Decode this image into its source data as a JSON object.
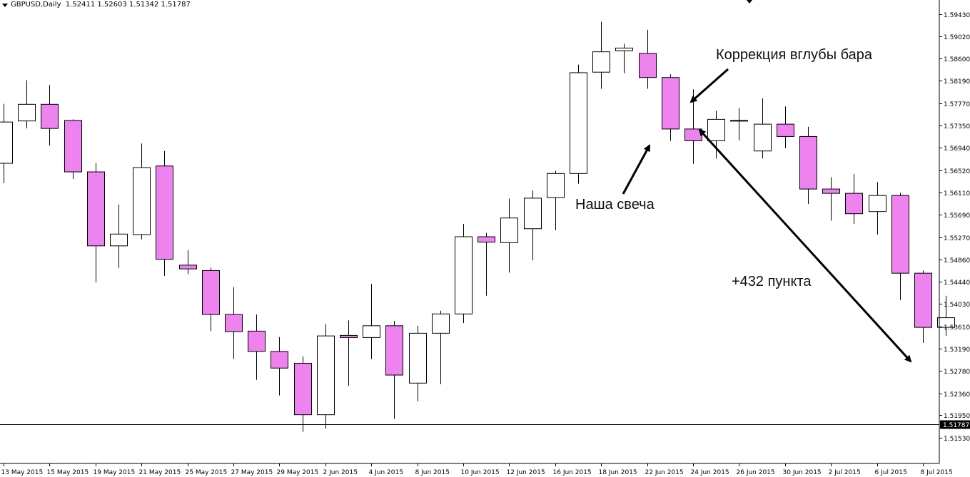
{
  "header": {
    "symbol": "GBPUSD,Daily",
    "ohlc": "1.52411 1.52603 1.51342 1.51787"
  },
  "annotations": {
    "correction": "Коррекция вглубы бара",
    "our_candle": "Наша свеча",
    "points": "+432 пункта"
  },
  "colors": {
    "bear_body": "#ee82ee",
    "bull_body": "#ffffff",
    "outline": "#000000",
    "current_price_tag": "#000000"
  },
  "chart_data": {
    "type": "candlestick",
    "y_ticks": [
      "1.59430",
      "1.59020",
      "1.58600",
      "1.58190",
      "1.57770",
      "1.57350",
      "1.56940",
      "1.56520",
      "1.56110",
      "1.55690",
      "1.55270",
      "1.54860",
      "1.54440",
      "1.54030",
      "1.53610",
      "1.53190",
      "1.52780",
      "1.52360",
      "1.51950",
      "1.51530"
    ],
    "ylim": [
      1.5148,
      1.5951
    ],
    "current_price": "1.51787",
    "x_tick_labels": [
      "13 May 2015",
      "15 May 2015",
      "19 May 2015",
      "21 May 2015",
      "25 May 2015",
      "27 May 2015",
      "29 May 2015",
      "2 Jun 2015",
      "4 Jun 2015",
      "8 Jun 2015",
      "10 Jun 2015",
      "12 Jun 2015",
      "16 Jun 2015",
      "18 Jun 2015",
      "22 Jun 2015",
      "24 Jun 2015",
      "26 Jun 2015",
      "30 Jun 2015",
      "2 Jul 2015",
      "6 Jul 2015",
      "8 Jul 2015"
    ],
    "candles": [
      {
        "o": 1.5665,
        "h": 1.5776,
        "l": 1.5628,
        "c": 1.5742
      },
      {
        "o": 1.5744,
        "h": 1.582,
        "l": 1.573,
        "c": 1.5775
      },
      {
        "o": 1.5775,
        "h": 1.5811,
        "l": 1.5698,
        "c": 1.573
      },
      {
        "o": 1.5745,
        "h": 1.5747,
        "l": 1.5636,
        "c": 1.5649
      },
      {
        "o": 1.5649,
        "h": 1.5665,
        "l": 1.5443,
        "c": 1.5511
      },
      {
        "o": 1.5511,
        "h": 1.5588,
        "l": 1.547,
        "c": 1.5533
      },
      {
        "o": 1.5532,
        "h": 1.5702,
        "l": 1.5523,
        "c": 1.5657
      },
      {
        "o": 1.566,
        "h": 1.5688,
        "l": 1.5455,
        "c": 1.5486
      },
      {
        "o": 1.5475,
        "h": 1.5503,
        "l": 1.5458,
        "c": 1.5468
      },
      {
        "o": 1.5465,
        "h": 1.547,
        "l": 1.5352,
        "c": 1.5383
      },
      {
        "o": 1.5383,
        "h": 1.5434,
        "l": 1.53,
        "c": 1.5351
      },
      {
        "o": 1.5352,
        "h": 1.5383,
        "l": 1.5261,
        "c": 1.5314
      },
      {
        "o": 1.5314,
        "h": 1.5341,
        "l": 1.5232,
        "c": 1.5283
      },
      {
        "o": 1.5292,
        "h": 1.5305,
        "l": 1.5164,
        "c": 1.5196
      },
      {
        "o": 1.5196,
        "h": 1.5365,
        "l": 1.517,
        "c": 1.5343
      },
      {
        "o": 1.5344,
        "h": 1.5372,
        "l": 1.525,
        "c": 1.534
      },
      {
        "o": 1.534,
        "h": 1.544,
        "l": 1.53,
        "c": 1.5362
      },
      {
        "o": 1.5362,
        "h": 1.5371,
        "l": 1.5188,
        "c": 1.527
      },
      {
        "o": 1.5255,
        "h": 1.5362,
        "l": 1.5221,
        "c": 1.5348
      },
      {
        "o": 1.5348,
        "h": 1.539,
        "l": 1.5253,
        "c": 1.5384
      },
      {
        "o": 1.5384,
        "h": 1.5552,
        "l": 1.5367,
        "c": 1.5528
      },
      {
        "o": 1.5528,
        "h": 1.5535,
        "l": 1.5418,
        "c": 1.5518
      },
      {
        "o": 1.5517,
        "h": 1.5599,
        "l": 1.5461,
        "c": 1.5563
      },
      {
        "o": 1.5543,
        "h": 1.5614,
        "l": 1.5484,
        "c": 1.56
      },
      {
        "o": 1.5601,
        "h": 1.5651,
        "l": 1.554,
        "c": 1.5646
      },
      {
        "o": 1.5646,
        "h": 1.5849,
        "l": 1.5627,
        "c": 1.5834
      },
      {
        "o": 1.5835,
        "h": 1.5929,
        "l": 1.5804,
        "c": 1.5873
      },
      {
        "o": 1.5875,
        "h": 1.5888,
        "l": 1.5833,
        "c": 1.588
      },
      {
        "o": 1.587,
        "h": 1.5914,
        "l": 1.5804,
        "c": 1.5825
      },
      {
        "o": 1.5825,
        "h": 1.5831,
        "l": 1.5707,
        "c": 1.5729
      },
      {
        "o": 1.5729,
        "h": 1.5803,
        "l": 1.5664,
        "c": 1.5707
      },
      {
        "o": 1.5707,
        "h": 1.5763,
        "l": 1.5674,
        "c": 1.5747
      },
      {
        "o": 1.5745,
        "h": 1.5768,
        "l": 1.5708,
        "c": 1.5745
      },
      {
        "o": 1.5688,
        "h": 1.5786,
        "l": 1.5674,
        "c": 1.5738
      },
      {
        "o": 1.5738,
        "h": 1.5771,
        "l": 1.5693,
        "c": 1.5715
      },
      {
        "o": 1.5715,
        "h": 1.5733,
        "l": 1.5589,
        "c": 1.5617
      },
      {
        "o": 1.5617,
        "h": 1.5639,
        "l": 1.5558,
        "c": 1.5609
      },
      {
        "o": 1.5609,
        "h": 1.5645,
        "l": 1.5552,
        "c": 1.5571
      },
      {
        "o": 1.5575,
        "h": 1.563,
        "l": 1.5532,
        "c": 1.5605
      },
      {
        "o": 1.5605,
        "h": 1.561,
        "l": 1.541,
        "c": 1.546
      },
      {
        "o": 1.546,
        "h": 1.5465,
        "l": 1.533,
        "c": 1.5359
      },
      {
        "o": 1.5359,
        "h": 1.5418,
        "l": 1.5343,
        "c": 1.5377
      }
    ]
  }
}
